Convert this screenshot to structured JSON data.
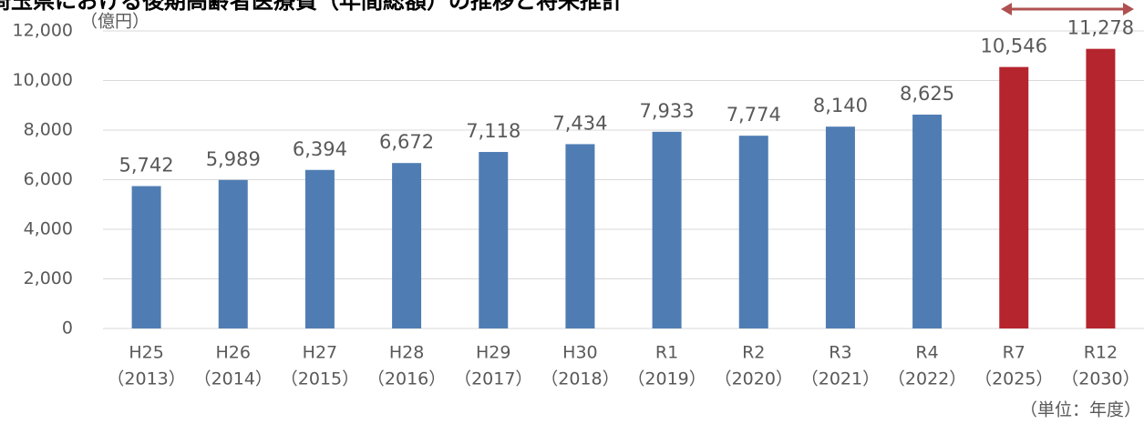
{
  "chart_data": {
    "type": "bar",
    "title": "埼玉県における後期高齢者医療費（年間総額）の推移と将来推計",
    "y_unit": "（億円）",
    "x_unit": "（単位：年度）",
    "categories": [
      [
        "H25",
        "（2013）"
      ],
      [
        "H26",
        "（2014）"
      ],
      [
        "H27",
        "（2015）"
      ],
      [
        "H28",
        "（2016）"
      ],
      [
        "H29",
        "（2017）"
      ],
      [
        "H30",
        "（2018）"
      ],
      [
        "R1",
        "（2019）"
      ],
      [
        "R2",
        "（2020）"
      ],
      [
        "R3",
        "（2021）"
      ],
      [
        "R4",
        "（2022）"
      ],
      [
        "R7",
        "（2025）"
      ],
      [
        "R12",
        "（2030）"
      ]
    ],
    "values": [
      5742,
      5989,
      6394,
      6672,
      7118,
      7434,
      7933,
      7774,
      8140,
      8625,
      10546,
      11278
    ],
    "value_labels": [
      "5,742",
      "5,989",
      "6,394",
      "6,672",
      "7,118",
      "7,434",
      "7,933",
      "7,774",
      "8,140",
      "8,625",
      "10,546",
      "11,278"
    ],
    "colors": [
      "#4f7db3",
      "#4f7db3",
      "#4f7db3",
      "#4f7db3",
      "#4f7db3",
      "#4f7db3",
      "#4f7db3",
      "#4f7db3",
      "#4f7db3",
      "#4f7db3",
      "#b5252e",
      "#b5252e"
    ],
    "ylim": [
      0,
      12000
    ],
    "yticks": [
      0,
      {
        "value": 2000,
        "label": "2,000"
      },
      {
        "value": 4000,
        "label": "4,000"
      },
      {
        "value": 6000,
        "label": "6,000"
      },
      {
        "value": 8000,
        "label": "8,000"
      },
      {
        "value": 10000,
        "label": "10,000"
      },
      {
        "value": 12000,
        "label": "12,000"
      }
    ],
    "grid": true
  }
}
